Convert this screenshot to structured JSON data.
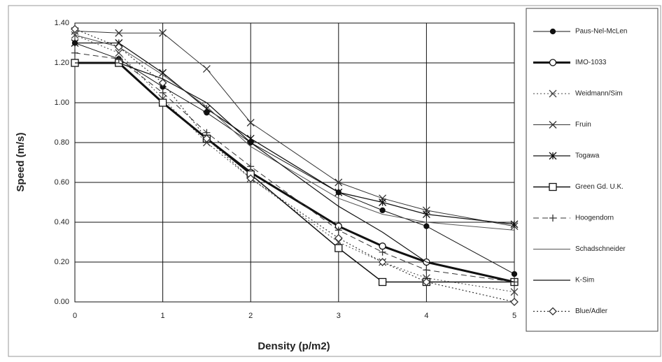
{
  "chart_data": {
    "type": "line",
    "x_label": "Density (p/m2)",
    "y_label": "Speed (m/s)",
    "x": [
      0,
      0.5,
      1,
      1.5,
      2,
      3,
      3.5,
      4,
      5
    ],
    "xlim": [
      0,
      5
    ],
    "xticks": [
      0,
      1,
      2,
      3,
      4,
      5
    ],
    "ylim": [
      0,
      1.4
    ],
    "yticks": [
      {
        "value": 0,
        "label": "0.00"
      },
      {
        "value": 0.2,
        "label": "0.20"
      },
      {
        "value": 0.4,
        "label": "0.40"
      },
      {
        "value": 0.6,
        "label": "0.60"
      },
      {
        "value": 0.8,
        "label": "0.80"
      },
      {
        "value": 1.0,
        "label": "1.00"
      },
      {
        "value": 1.2,
        "label": "1.20"
      },
      {
        "value": 1.4,
        "label": "1.40"
      }
    ],
    "grid": true,
    "legend": "right",
    "series": [
      {
        "name": "Paus-Nel-McLen",
        "color": "#111",
        "marker": "dot",
        "dash": "none",
        "width": 1,
        "values": [
          1.3,
          1.22,
          1.08,
          0.95,
          0.8,
          0.55,
          0.46,
          0.38,
          0.14
        ]
      },
      {
        "name": "IMO-1033",
        "color": "#111",
        "marker": "circle",
        "dash": "none",
        "width": 3,
        "values": [
          1.2,
          1.2,
          1.0,
          0.82,
          0.65,
          0.38,
          0.28,
          0.2,
          0.1
        ]
      },
      {
        "name": "Weidmann/Sim",
        "color": "#444",
        "marker": "x",
        "dash": "2,3",
        "width": 1,
        "values": [
          1.34,
          1.25,
          1.02,
          0.8,
          0.62,
          0.3,
          0.2,
          0.12,
          0.05
        ]
      },
      {
        "name": "Fruin",
        "color": "#333",
        "marker": "x",
        "dash": "none",
        "width": 1,
        "values": [
          1.36,
          1.35,
          1.35,
          1.17,
          0.9,
          0.6,
          0.52,
          0.46,
          0.38
        ]
      },
      {
        "name": "Togawa",
        "color": "#111",
        "marker": "star",
        "dash": "none",
        "width": 1.3,
        "values": [
          1.3,
          1.3,
          1.15,
          0.97,
          0.82,
          0.55,
          0.5,
          0.44,
          0.39
        ]
      },
      {
        "name": "Green Gd. U.K.",
        "color": "#111",
        "marker": "square",
        "dash": "none",
        "width": 1.5,
        "values": [
          1.2,
          1.2,
          1.0,
          0.82,
          0.64,
          0.27,
          0.1,
          0.1,
          0.1
        ]
      },
      {
        "name": "Hoogendorn",
        "color": "#333",
        "marker": "plus",
        "dash": "8,5",
        "width": 1,
        "values": [
          1.25,
          1.22,
          1.05,
          0.85,
          0.68,
          0.36,
          0.25,
          0.16,
          0.1
        ]
      },
      {
        "name": "Schadschneider",
        "color": "#555",
        "marker": "none",
        "dash": "none",
        "width": 1,
        "values": [
          1.34,
          1.28,
          1.14,
          0.98,
          0.78,
          0.52,
          0.44,
          0.4,
          0.36
        ]
      },
      {
        "name": "K-Sim",
        "color": "#111",
        "marker": "none",
        "dash": "none",
        "width": 1.2,
        "values": [
          1.2,
          1.2,
          1.12,
          1.0,
          0.8,
          0.48,
          0.35,
          0.2,
          0.1
        ]
      },
      {
        "name": "Blue/Adler",
        "color": "#333",
        "marker": "diamond",
        "dash": "2,3",
        "width": 1.2,
        "values": [
          1.37,
          1.28,
          1.1,
          0.82,
          0.62,
          0.32,
          0.2,
          0.1,
          0.0
        ]
      }
    ]
  }
}
